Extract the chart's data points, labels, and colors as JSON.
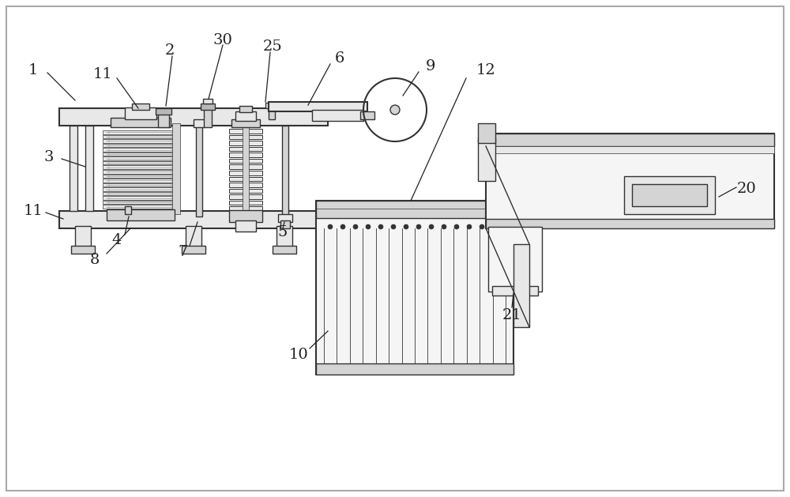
{
  "bg_color": "#ffffff",
  "border_color": "#cccccc",
  "lc": "#333333",
  "lw": 1.0,
  "tlw": 0.6,
  "thk": 1.5,
  "fill_light": "#e8e8e8",
  "fill_mid": "#d4d4d4",
  "fill_dark": "#b8b8b8",
  "fill_white": "#f5f5f5"
}
